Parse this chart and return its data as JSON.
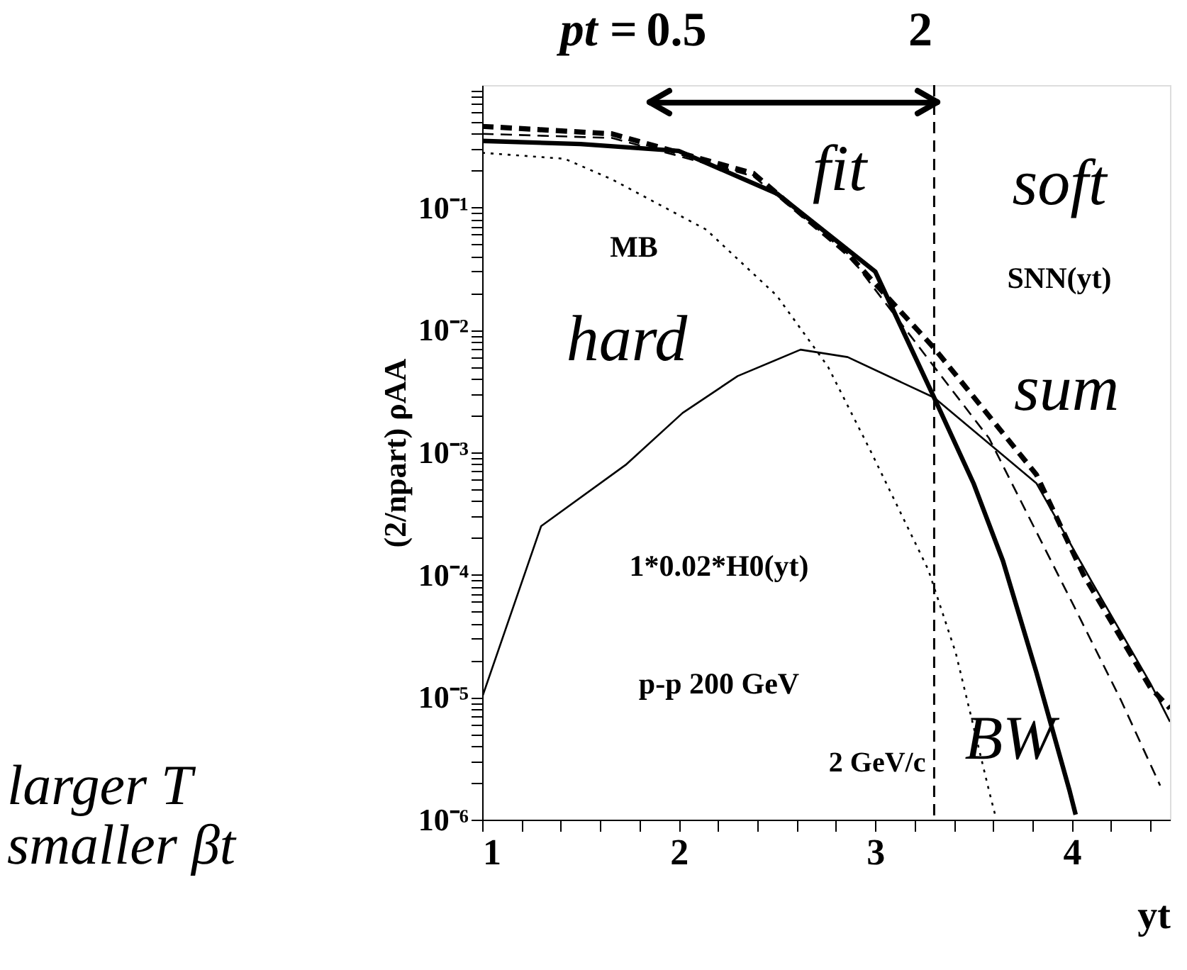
{
  "chart_data": {
    "type": "line",
    "xlabel": "yt",
    "ylabel": "(2/npart) ρAA",
    "log": "y",
    "grid": false,
    "marker": "none",
    "xlim": [
      1,
      4.5
    ],
    "ylim": [
      1e-06,
      1
    ],
    "xticks": [
      1,
      {
        "value": 1.2,
        "label": null
      },
      {
        "value": 1.4,
        "label": null
      },
      {
        "value": 1.6,
        "label": null
      },
      {
        "value": 1.8,
        "label": null
      },
      2,
      {
        "value": 2.2,
        "label": null
      },
      {
        "value": 2.4,
        "label": null
      },
      {
        "value": 2.6,
        "label": null
      },
      {
        "value": 2.8,
        "label": null
      },
      3,
      {
        "value": 3.2,
        "label": null
      },
      {
        "value": 3.4,
        "label": null
      },
      {
        "value": 3.6,
        "label": null
      },
      {
        "value": 3.8,
        "label": null
      },
      4,
      {
        "value": 4.2,
        "label": null
      },
      {
        "value": 4.4,
        "label": null
      }
    ],
    "yticks": [
      {
        "value": 1e-06,
        "label": "10⁻⁶"
      },
      {
        "value": 2e-06,
        "label": null
      },
      {
        "value": 3e-06,
        "label": null
      },
      {
        "value": 4e-06,
        "label": null
      },
      {
        "value": 5e-06,
        "label": null
      },
      {
        "value": 6e-06,
        "label": null
      },
      {
        "value": 7e-06,
        "label": null
      },
      {
        "value": 8e-06,
        "label": null
      },
      {
        "value": 9e-06,
        "label": null
      },
      {
        "value": 1e-05,
        "label": "10⁻⁵"
      },
      {
        "value": 2e-05,
        "label": null
      },
      {
        "value": 3e-05,
        "label": null
      },
      {
        "value": 4e-05,
        "label": null
      },
      {
        "value": 5e-05,
        "label": null
      },
      {
        "value": 6e-05,
        "label": null
      },
      {
        "value": 7e-05,
        "label": null
      },
      {
        "value": 8e-05,
        "label": null
      },
      {
        "value": 9e-05,
        "label": null
      },
      {
        "value": 0.0001,
        "label": "10⁻⁴"
      },
      {
        "value": 0.0002,
        "label": null
      },
      {
        "value": 0.0003,
        "label": null
      },
      {
        "value": 0.0004,
        "label": null
      },
      {
        "value": 0.0005,
        "label": null
      },
      {
        "value": 0.0006,
        "label": null
      },
      {
        "value": 0.0007,
        "label": null
      },
      {
        "value": 0.0008,
        "label": null
      },
      {
        "value": 0.0009,
        "label": null
      },
      {
        "value": 0.001,
        "label": "10⁻³"
      },
      {
        "value": 0.002,
        "label": null
      },
      {
        "value": 0.003,
        "label": null
      },
      {
        "value": 0.004,
        "label": null
      },
      {
        "value": 0.005,
        "label": null
      },
      {
        "value": 0.006,
        "label": null
      },
      {
        "value": 0.007,
        "label": null
      },
      {
        "value": 0.008,
        "label": null
      },
      {
        "value": 0.009,
        "label": null
      },
      {
        "value": 0.01,
        "label": "10⁻²"
      },
      {
        "value": 0.02,
        "label": null
      },
      {
        "value": 0.03,
        "label": null
      },
      {
        "value": 0.04,
        "label": null
      },
      {
        "value": 0.05,
        "label": null
      },
      {
        "value": 0.06,
        "label": null
      },
      {
        "value": 0.07,
        "label": null
      },
      {
        "value": 0.08,
        "label": null
      },
      {
        "value": 0.09,
        "label": null
      },
      {
        "value": 0.1,
        "label": "10⁻¹"
      },
      {
        "value": 0.2,
        "label": null
      },
      {
        "value": 0.3,
        "label": null
      },
      {
        "value": 0.4,
        "label": null
      },
      {
        "value": 0.5,
        "label": null
      },
      {
        "value": 0.6,
        "label": null
      },
      {
        "value": 0.7,
        "label": null
      },
      {
        "value": 0.8,
        "label": null
      },
      {
        "value": 0.9,
        "label": null
      }
    ],
    "series": [
      {
        "color": "#000000",
        "line_style": "solid",
        "x": [
          1,
          1.5,
          2,
          2.5,
          3,
          3.3,
          3.5,
          3.65,
          3.82,
          3.99,
          4.02
        ],
        "values": [
          0.35,
          0.33,
          0.29,
          0.13,
          0.03,
          0.0028,
          0.00056,
          0.00013,
          1.6e-05,
          1.7e-06,
          1.1e-06
        ]
      },
      {
        "color": "#000000",
        "line_style": "solid",
        "x": [
          1,
          1.3,
          1.73,
          2.02,
          2.3,
          2.62,
          2.86,
          3.3,
          3.82,
          4.1,
          4.4,
          4.5
        ],
        "values": [
          1e-05,
          0.00025,
          0.00079,
          0.0021,
          0.0042,
          0.0069,
          0.006,
          0.0028,
          0.00056,
          8.9e-05,
          1.3e-05,
          6.3e-06
        ]
      },
      {
        "color": "#000000",
        "line_style": "dotted",
        "x": [
          1,
          1.42,
          1.66,
          2.14,
          2.5,
          2.76,
          2.98,
          3.27,
          3.41,
          3.58,
          3.61
        ],
        "values": [
          0.28,
          0.25,
          0.17,
          0.066,
          0.019,
          0.005,
          0.001,
          0.00011,
          2.3e-05,
          1.7e-06,
          1.1e-06
        ]
      },
      {
        "color": "#000000",
        "line_style": "dashed",
        "x": [
          1,
          1.66,
          2.38,
          2.86,
          3.3,
          3.82,
          4.06,
          4.4,
          4.5
        ],
        "values": [
          0.46,
          0.4,
          0.19,
          0.042,
          0.0071,
          0.00066,
          0.0001,
          1.2e-05,
          8.1e-06
        ]
      },
      {
        "color": "#000000",
        "line_style": "dashed",
        "x": [
          1,
          1.66,
          2.38,
          2.86,
          3.3,
          3.58,
          4.01,
          4.25,
          4.45
        ],
        "values": [
          0.4,
          0.37,
          0.18,
          0.042,
          0.005,
          0.0013,
          5.6e-05,
          9.5e-06,
          1.9e-06
        ]
      }
    ],
    "ref_lines": [
      {
        "axis": "x",
        "value": 3.3,
        "label": "2 GeV/c",
        "line_style": "dashed",
        "color": "#000000"
      }
    ],
    "annotations": [
      "fit",
      "soft",
      "MB",
      "SNN(yt)",
      "hard",
      "sum",
      "1*0.02*H0(yt)",
      "p-p  200 GeV",
      "BW",
      "larger T",
      "smaller βt",
      "pt =",
      "0.5",
      "2"
    ]
  }
}
